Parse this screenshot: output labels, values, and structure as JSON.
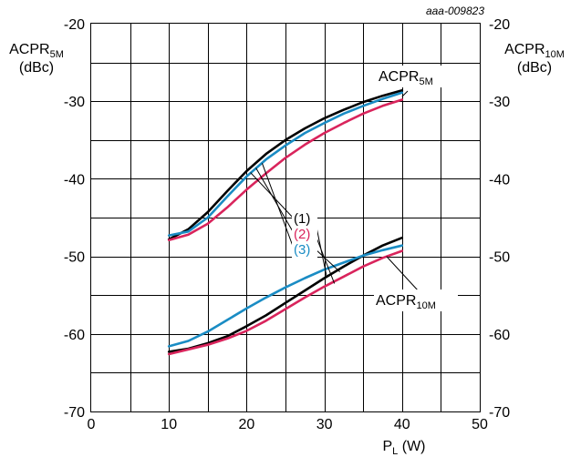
{
  "figure_id": "aaa-009823",
  "chart_data": {
    "type": "line",
    "x_label_main": "P",
    "x_label_sub": "L",
    "x_label_unit": " (W)",
    "y_left_label_main": "ACPR",
    "y_left_label_sub": "5M",
    "y_left_label_unit": "(dBc)",
    "y_right_label_main": "ACPR",
    "y_right_label_sub": "10M",
    "y_right_label_unit": "(dBc)",
    "xlim": [
      0,
      50
    ],
    "ylim": [
      -70,
      -20
    ],
    "x_ticks": [
      "0",
      "10",
      "20",
      "30",
      "40",
      "50"
    ],
    "y_ticks": [
      "-70",
      "-60",
      "-50",
      "-40",
      "-30",
      "-20"
    ],
    "x_ticks_values": [
      0,
      10,
      20,
      30,
      40,
      50
    ],
    "y_ticks_values": [
      -70,
      -60,
      -50,
      -40,
      -30,
      -20
    ],
    "grid": true,
    "curve_labels": [
      {
        "main": "ACPR",
        "sub": "5M"
      },
      {
        "main": "ACPR",
        "sub": "10M"
      }
    ],
    "series_labels": [
      "(1)",
      "(2)",
      "(3)"
    ],
    "series_colors": [
      "#000000",
      "#d9245c",
      "#1a8cc4"
    ],
    "series": [
      {
        "name": "(1)",
        "group": "ACPR5M",
        "color": "#000000",
        "x": [
          10,
          12.5,
          15,
          17.5,
          20,
          22.5,
          25,
          27.5,
          30,
          32.5,
          35,
          37.5,
          40
        ],
        "y": [
          -47.8,
          -46.5,
          -44.3,
          -41.6,
          -39.0,
          -36.8,
          -35.0,
          -33.5,
          -32.2,
          -31.1,
          -30.1,
          -29.3,
          -28.6
        ]
      },
      {
        "name": "(2)",
        "group": "ACPR5M",
        "color": "#d9245c",
        "x": [
          10,
          12.5,
          15,
          17.5,
          20,
          22.5,
          25,
          27.5,
          30,
          32.5,
          35,
          37.5,
          40
        ],
        "y": [
          -47.9,
          -47.2,
          -45.8,
          -43.7,
          -41.4,
          -39.3,
          -37.3,
          -35.6,
          -34.1,
          -32.8,
          -31.6,
          -30.6,
          -29.8
        ]
      },
      {
        "name": "(3)",
        "group": "ACPR5M",
        "color": "#1a8cc4",
        "x": [
          10,
          12.5,
          15,
          17.5,
          20,
          22.5,
          25,
          27.5,
          30,
          32.5,
          35,
          37.5,
          40
        ],
        "y": [
          -47.3,
          -46.8,
          -45.0,
          -42.3,
          -39.7,
          -37.5,
          -35.7,
          -34.1,
          -32.8,
          -31.6,
          -30.6,
          -29.7,
          -28.9
        ]
      },
      {
        "name": "(1)",
        "group": "ACPR10M",
        "color": "#000000",
        "x": [
          10,
          12.5,
          15,
          17.5,
          20,
          22.5,
          25,
          27.5,
          30,
          32.5,
          35,
          37.5,
          40
        ],
        "y": [
          -62.3,
          -61.9,
          -61.2,
          -60.3,
          -59.0,
          -57.6,
          -56.0,
          -54.4,
          -52.8,
          -51.3,
          -49.9,
          -48.6,
          -47.6
        ]
      },
      {
        "name": "(2)",
        "group": "ACPR10M",
        "color": "#d9245c",
        "x": [
          10,
          12.5,
          15,
          17.5,
          20,
          22.5,
          25,
          27.5,
          30,
          32.5,
          35,
          37.5,
          40
        ],
        "y": [
          -62.6,
          -62.0,
          -61.4,
          -60.6,
          -59.6,
          -58.3,
          -56.8,
          -55.3,
          -53.9,
          -52.6,
          -51.3,
          -50.2,
          -49.3
        ]
      },
      {
        "name": "(3)",
        "group": "ACPR10M",
        "color": "#1a8cc4",
        "x": [
          10,
          12.5,
          15,
          17.5,
          20,
          22.5,
          25,
          27.5,
          30,
          32.5,
          35,
          37.5,
          40
        ],
        "y": [
          -61.6,
          -60.9,
          -59.7,
          -58.2,
          -56.7,
          -55.3,
          -54.0,
          -52.8,
          -51.7,
          -50.8,
          -49.9,
          -49.2,
          -48.6
        ]
      }
    ]
  }
}
